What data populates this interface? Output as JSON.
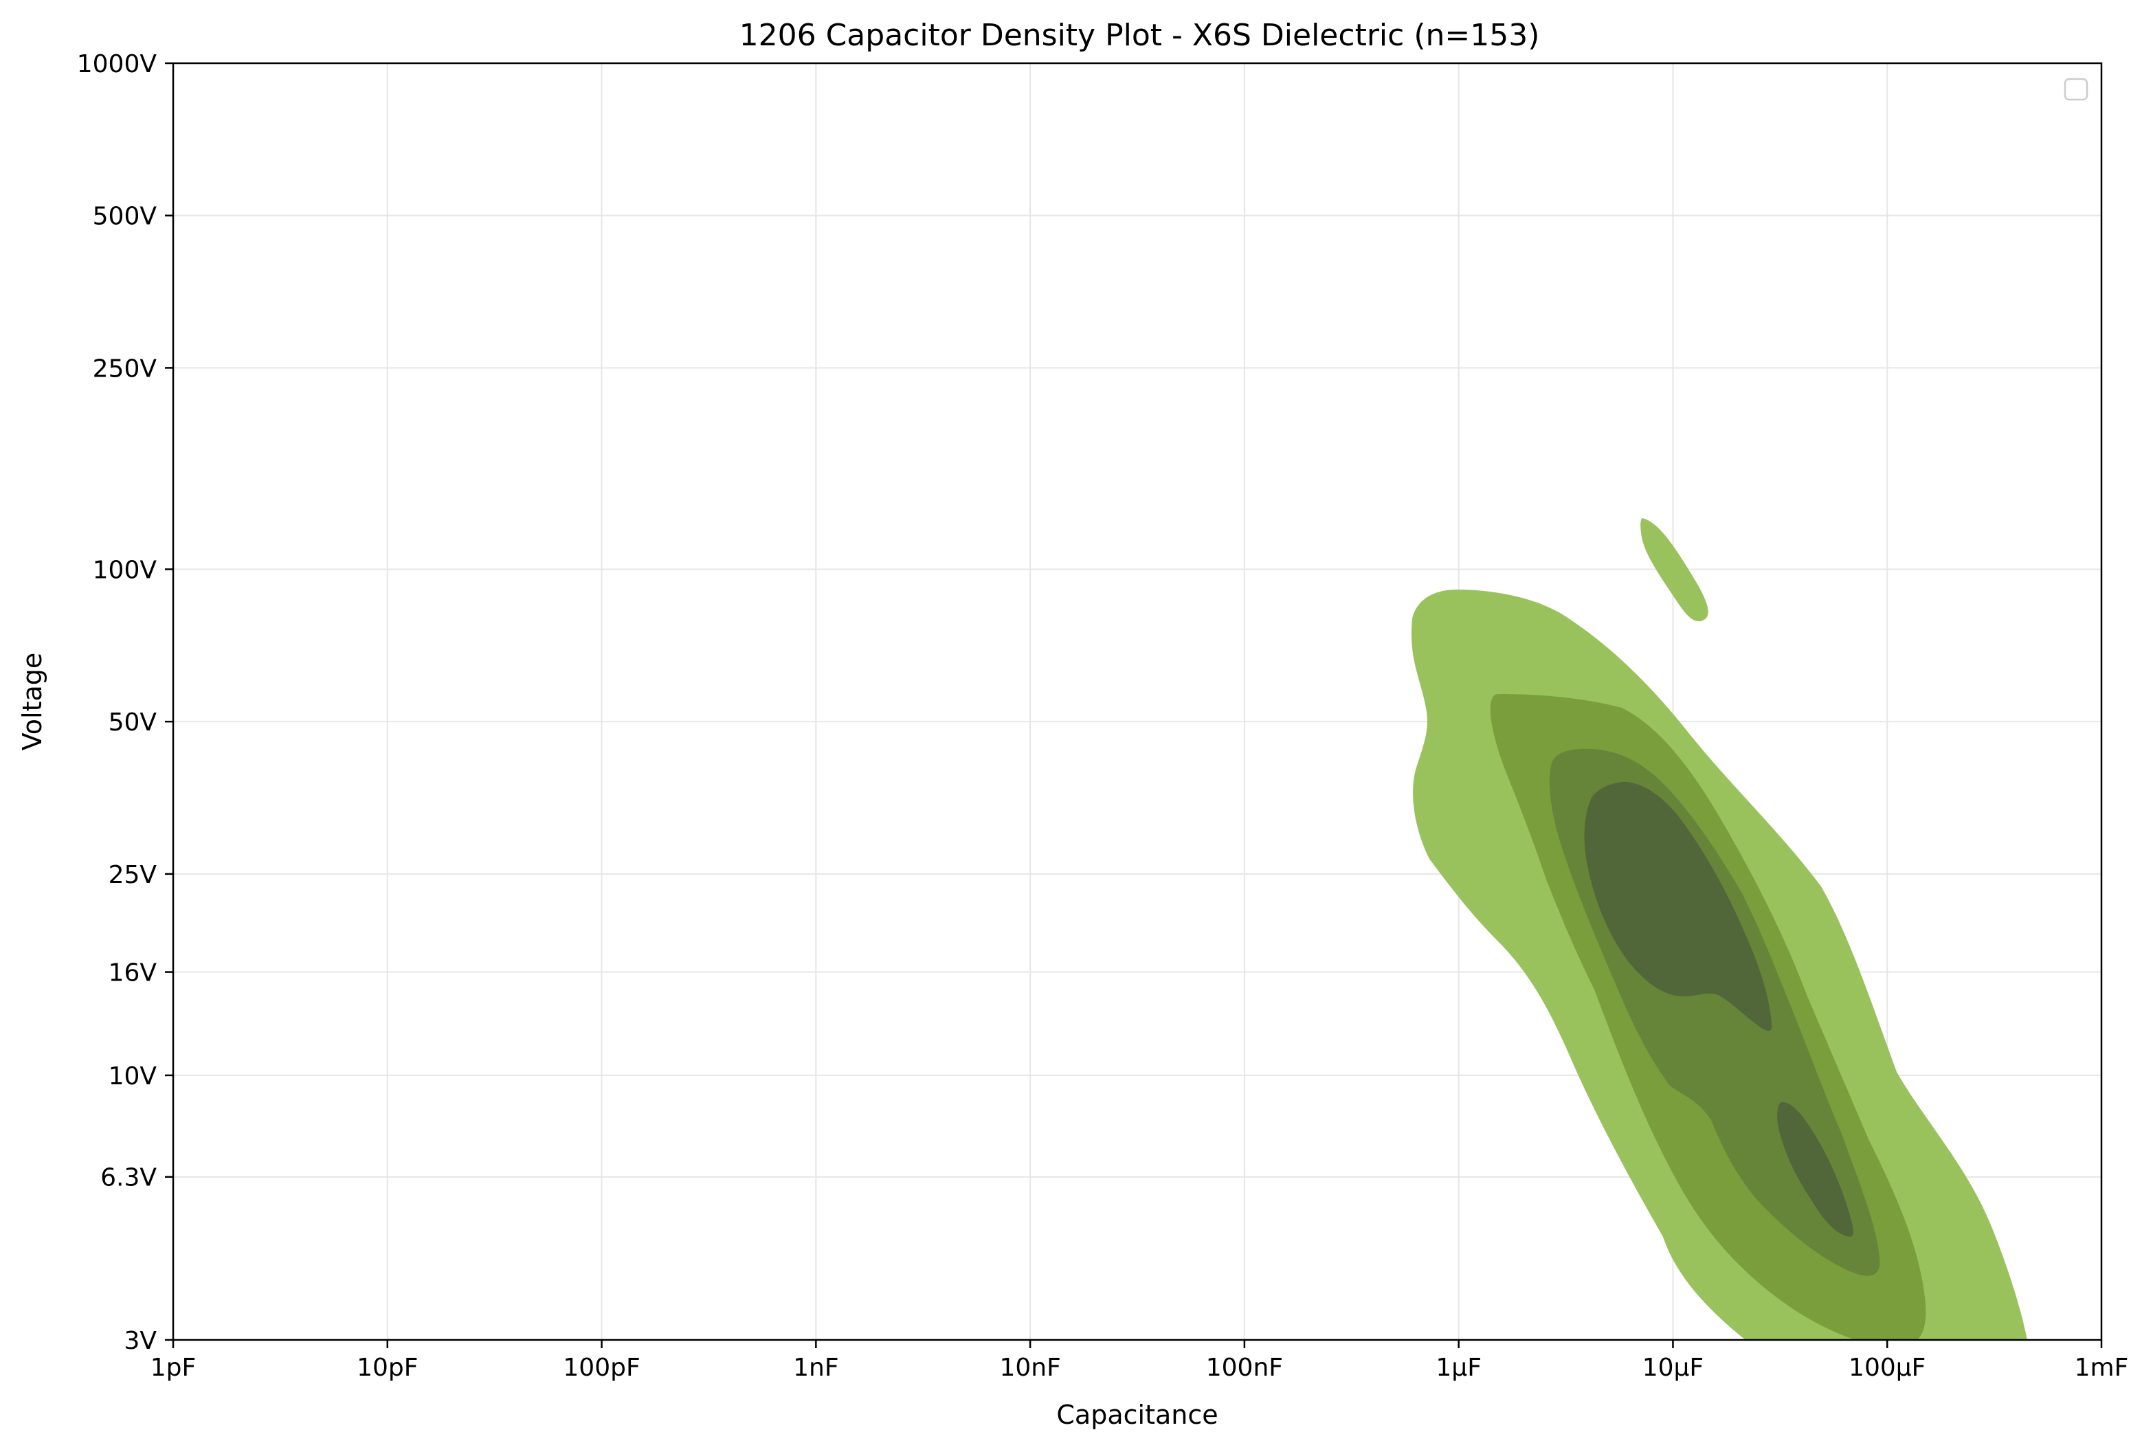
{
  "chart_data": {
    "type": "density-contour",
    "title": "1206 Capacitor Density Plot - X6S Dielectric (n=153)",
    "xlabel": "Capacitance",
    "ylabel": "Voltage",
    "x_scale": "log",
    "y_scale": "log",
    "xlim": [
      "1pF",
      "1mF"
    ],
    "ylim": [
      "3V",
      "1000V"
    ],
    "x_ticks": [
      {
        "label": "1pF",
        "value": 1e-12
      },
      {
        "label": "10pF",
        "value": 1e-11
      },
      {
        "label": "100pF",
        "value": 1e-10
      },
      {
        "label": "1nF",
        "value": 1e-09
      },
      {
        "label": "10nF",
        "value": 1e-08
      },
      {
        "label": "100nF",
        "value": 1e-07
      },
      {
        "label": "1µF",
        "value": 1e-06
      },
      {
        "label": "10µF",
        "value": 1e-05
      },
      {
        "label": "100µF",
        "value": 0.0001
      },
      {
        "label": "1mF",
        "value": 0.001
      }
    ],
    "y_ticks": [
      {
        "label": "3V",
        "value": 3
      },
      {
        "label": "6.3V",
        "value": 6.3
      },
      {
        "label": "10V",
        "value": 10
      },
      {
        "label": "16V",
        "value": 16
      },
      {
        "label": "25V",
        "value": 25
      },
      {
        "label": "50V",
        "value": 50
      },
      {
        "label": "100V",
        "value": 100
      },
      {
        "label": "250V",
        "value": 250
      },
      {
        "label": "500V",
        "value": 500
      },
      {
        "label": "1000V",
        "value": 1000
      }
    ],
    "grid": true,
    "legend": {
      "position": "upper-right",
      "entries": []
    },
    "colors": {
      "level1": "#9ac25c",
      "level2": "#7a9e3b",
      "level3": "#668539",
      "level4": "#516639",
      "grid": "#e6e6e6",
      "axis": "#000000"
    },
    "density_peak_regions": [
      {
        "capacitance_range": [
          "5µF",
          "25µF"
        ],
        "voltage_range": [
          "13V",
          "35V"
        ],
        "level": "highest"
      },
      {
        "capacitance_range": [
          "30µF",
          "50µF"
        ],
        "voltage_range": [
          "4.6V",
          "8.6V"
        ],
        "level": "highest"
      }
    ],
    "notes_visible": []
  }
}
